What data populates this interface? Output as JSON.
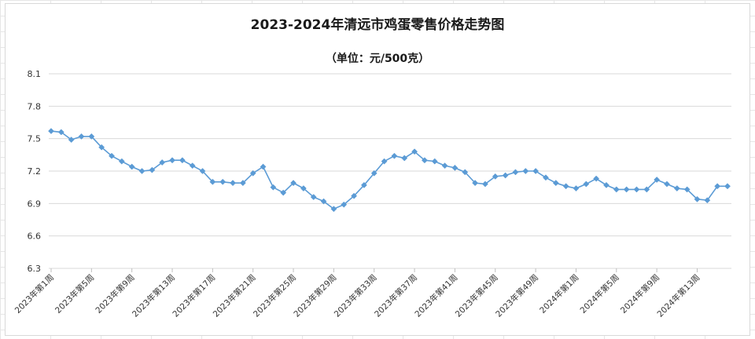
{
  "chart_data": {
    "type": "line",
    "title": "2023-2024年清远市鸡蛋零售价格走势图",
    "subtitle": "（单位：元/500克）",
    "xlabel": "",
    "ylabel": "",
    "ylim": [
      6.3,
      8.1
    ],
    "yticks": [
      "8.1",
      "7.8",
      "7.5",
      "7.2",
      "6.9",
      "6.6",
      "6.3"
    ],
    "grid": "horizontal",
    "legend": "none",
    "series_color": "#5b9bd5",
    "x_tick_labels": [
      "2023年第1周",
      "2023年第5周",
      "2023年第9周",
      "2023年第13周",
      "2023年第17周",
      "2023年第21周",
      "2023年第25周",
      "2023年第29周",
      "2023年第33周",
      "2023年第37周",
      "2023年第41周",
      "2023年第45周",
      "2023年第49周",
      "2024年第1周",
      "2024年第5周",
      "2024年第9周",
      "2024年第13周"
    ],
    "x_tick_every": 4,
    "values": [
      7.57,
      7.56,
      7.49,
      7.52,
      7.52,
      7.42,
      7.34,
      7.29,
      7.24,
      7.2,
      7.21,
      7.28,
      7.3,
      7.3,
      7.25,
      7.2,
      7.1,
      7.1,
      7.09,
      7.09,
      7.18,
      7.24,
      7.05,
      7.0,
      7.09,
      7.04,
      6.96,
      6.92,
      6.85,
      6.89,
      6.97,
      7.07,
      7.18,
      7.29,
      7.34,
      7.32,
      7.38,
      7.3,
      7.29,
      7.25,
      7.23,
      7.19,
      7.09,
      7.08,
      7.15,
      7.16,
      7.19,
      7.2,
      7.2,
      7.14,
      7.09,
      7.06,
      7.04,
      7.08,
      7.13,
      7.07,
      7.03,
      7.03,
      7.03,
      7.03,
      7.12,
      7.08,
      7.04,
      7.03,
      6.94,
      6.93,
      7.06,
      7.06
    ]
  }
}
